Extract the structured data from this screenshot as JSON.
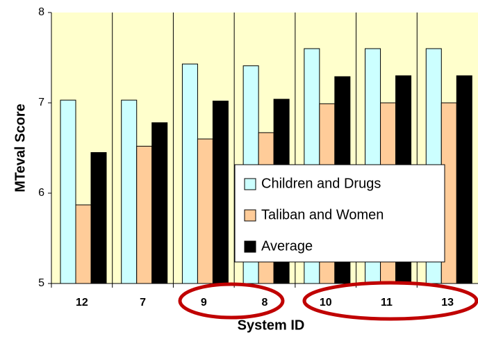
{
  "chart_data": {
    "type": "bar",
    "xlabel": "System ID",
    "ylabel": "MTeval Score",
    "categories": [
      "12",
      "7",
      "9",
      "8",
      "10",
      "11",
      "13"
    ],
    "series": [
      {
        "name": "Children and Drugs",
        "color": "#ccffff",
        "values": [
          7.03,
          7.03,
          7.43,
          7.41,
          7.6,
          7.6,
          7.6
        ]
      },
      {
        "name": "Taliban and Women",
        "color": "#ffcc99",
        "values": [
          5.87,
          6.52,
          6.6,
          6.67,
          6.99,
          7.0,
          7.0
        ]
      },
      {
        "name": "Average",
        "color": "#000000",
        "values": [
          6.45,
          6.78,
          7.02,
          7.04,
          7.29,
          7.3,
          7.3
        ]
      }
    ],
    "ylim": [
      5,
      8
    ],
    "yticks": [
      5,
      6,
      7,
      8
    ],
    "legend": "right"
  }
}
